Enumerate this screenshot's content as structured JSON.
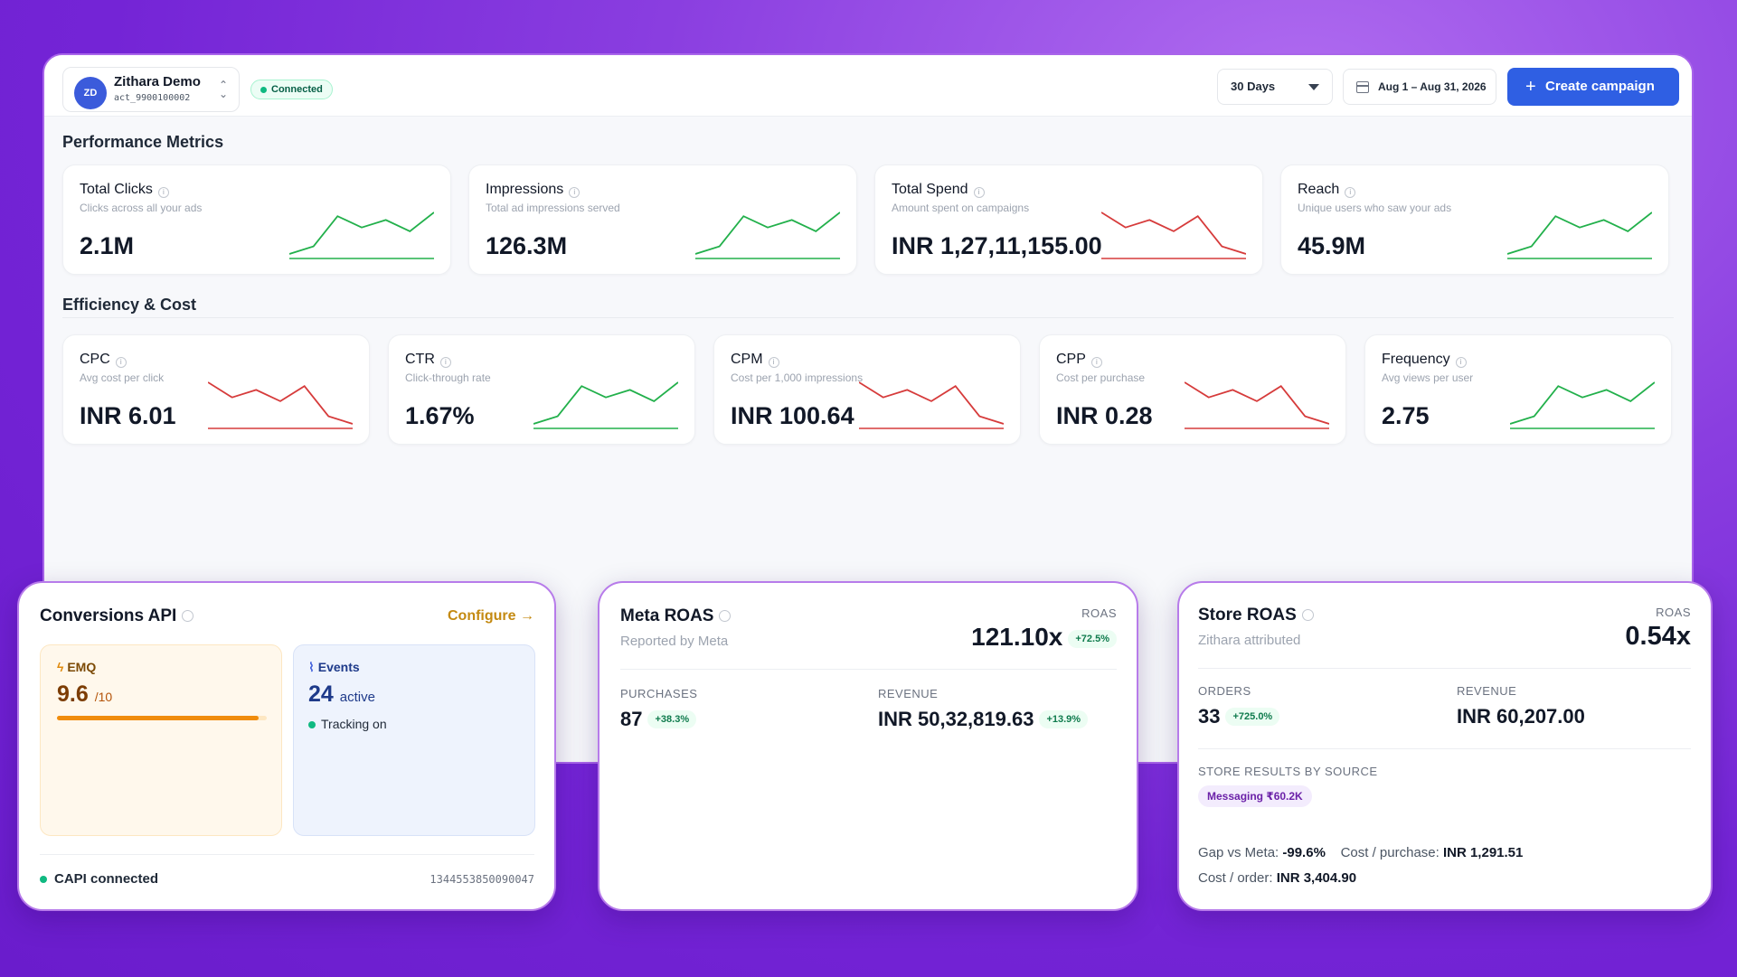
{
  "account": {
    "initials": "ZD",
    "name": "Zithara Demo",
    "id": "act_9900100002",
    "status": "Connected"
  },
  "toolbar": {
    "range": "30 Days",
    "date_range": "Aug 1 – Aug 31, 2026",
    "create_label": "Create campaign"
  },
  "sections": {
    "performance": "Performance Metrics",
    "efficiency": "Efficiency & Cost"
  },
  "performance": [
    {
      "title": "Total Clicks",
      "sub": "Clicks across all your ads",
      "value": "2.1M",
      "trend": "up",
      "series": [
        2,
        4,
        12,
        9,
        11,
        8,
        13
      ]
    },
    {
      "title": "Impressions",
      "sub": "Total ad impressions served",
      "value": "126.3M",
      "trend": "up",
      "series": [
        2,
        4,
        12,
        9,
        11,
        8,
        13
      ]
    },
    {
      "title": "Total Spend",
      "sub": "Amount spent on campaigns",
      "value": "INR 1,27,11,155.00",
      "trend": "down",
      "series": [
        13,
        9,
        11,
        8,
        12,
        4,
        2
      ]
    },
    {
      "title": "Reach",
      "sub": "Unique users who saw your ads",
      "value": "45.9M",
      "trend": "up",
      "series": [
        2,
        4,
        12,
        9,
        11,
        8,
        13
      ]
    }
  ],
  "efficiency": [
    {
      "title": "CPC",
      "sub": "Avg cost per click",
      "value": "INR 6.01",
      "trend": "down",
      "series": [
        13,
        9,
        11,
        8,
        12,
        4,
        2
      ]
    },
    {
      "title": "CTR",
      "sub": "Click-through rate",
      "value": "1.67%",
      "trend": "up",
      "series": [
        2,
        4,
        12,
        9,
        11,
        8,
        13
      ]
    },
    {
      "title": "CPM",
      "sub": "Cost per 1,000 impressions",
      "value": "INR 100.64",
      "trend": "down",
      "series": [
        13,
        9,
        11,
        8,
        12,
        4,
        2
      ]
    },
    {
      "title": "CPP",
      "sub": "Cost per purchase",
      "value": "INR 0.28",
      "trend": "down",
      "series": [
        13,
        9,
        11,
        8,
        12,
        4,
        2
      ]
    },
    {
      "title": "Frequency",
      "sub": "Avg views per user",
      "value": "2.75",
      "trend": "up",
      "series": [
        2,
        4,
        12,
        9,
        11,
        8,
        13
      ]
    }
  ],
  "capi": {
    "title": "Conversions API",
    "configure": "Configure",
    "emq_label": "EMQ",
    "emq_value": "9.6",
    "emq_max": "/10",
    "emq_fraction": 0.96,
    "events_label": "Events",
    "events_value": "24",
    "events_unit": "active",
    "tracking": "Tracking on",
    "footer_status": "CAPI connected",
    "footer_id": "1344553850090047"
  },
  "meta_roas": {
    "title": "Meta ROAS",
    "sub": "Reported by Meta",
    "roas_label": "ROAS",
    "roas_value": "121.10x",
    "roas_change": "+72.5%",
    "purchases_label": "PURCHASES",
    "purchases_value": "87",
    "purchases_change": "+38.3%",
    "revenue_label": "REVENUE",
    "revenue_value": "INR 50,32,819.63",
    "revenue_change": "+13.9%"
  },
  "store_roas": {
    "title": "Store ROAS",
    "sub": "Zithara attributed",
    "roas_label": "ROAS",
    "roas_value": "0.54x",
    "orders_label": "ORDERS",
    "orders_value": "33",
    "orders_change": "+725.0%",
    "revenue_label": "REVENUE",
    "revenue_value": "INR 60,207.00",
    "source_label": "STORE RESULTS BY SOURCE",
    "source_chip": "Messaging ₹60.2K",
    "gap_label": "Gap vs Meta:",
    "gap_value": "-99.6%",
    "cpp_label": "Cost / purchase:",
    "cpp_value": "INR 1,291.51",
    "cpo_label": "Cost / order:",
    "cpo_value": "INR 3,404.90"
  },
  "colors": {
    "up": "#22b04b",
    "down": "#d63b3b",
    "accent": "#2f5fe3"
  }
}
